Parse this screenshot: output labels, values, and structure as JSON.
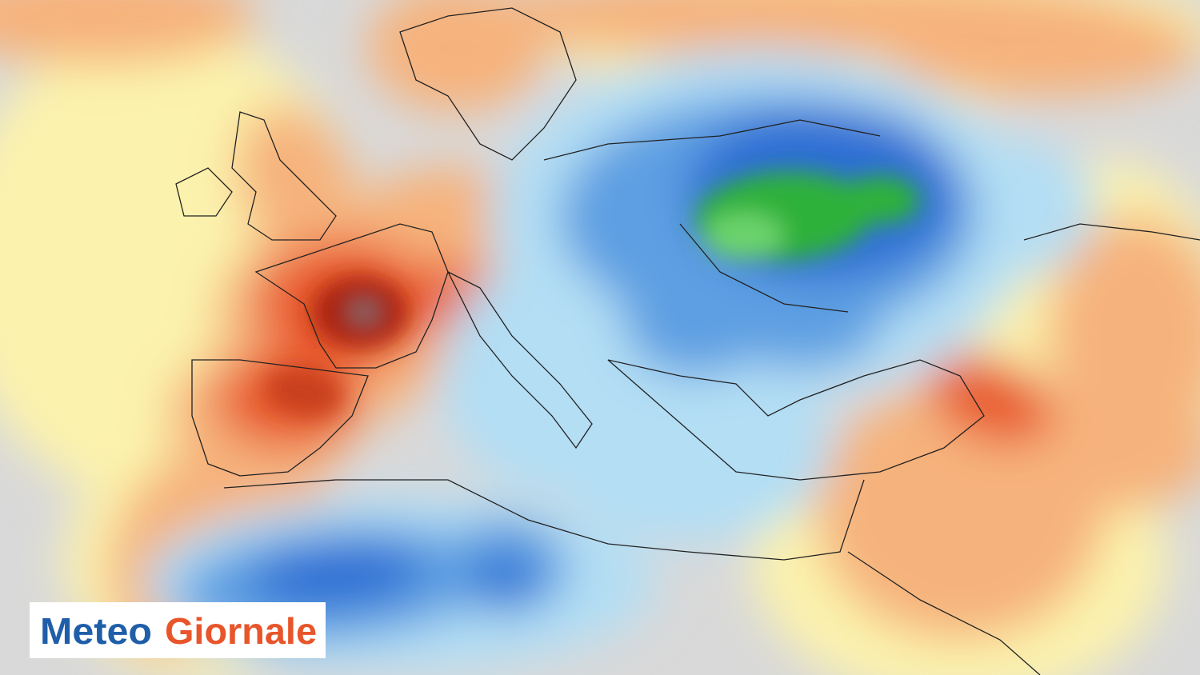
{
  "logo": {
    "first_word": "Meteo",
    "second_word": "Giornale"
  }
}
